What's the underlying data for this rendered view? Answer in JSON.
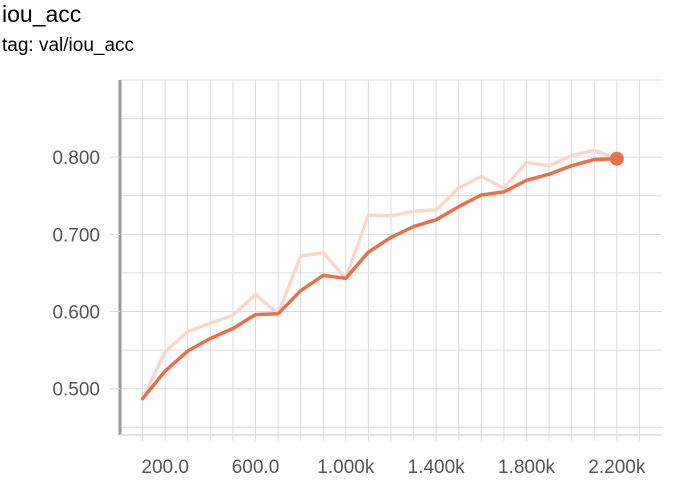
{
  "header": {
    "title": "iou_acc",
    "subtitle": "tag: val/iou_acc"
  },
  "chart_data": {
    "type": "line",
    "title": "iou_acc",
    "subtitle": "tag: val/iou_acc",
    "xlabel": "",
    "ylabel": "",
    "xlim": [
      0,
      2400
    ],
    "ylim": [
      0.44,
      0.9
    ],
    "grid": true,
    "x_ticks": [
      200,
      600,
      1000,
      1400,
      1800,
      2200
    ],
    "x_tick_labels": [
      "200.0",
      "600.0",
      "1.000k",
      "1.400k",
      "1.800k",
      "2.200k"
    ],
    "y_ticks": [
      0.5,
      0.6,
      0.7,
      0.8
    ],
    "y_tick_labels": [
      "0.500",
      "0.600",
      "0.700",
      "0.800"
    ],
    "colors": {
      "smoothed": "#e8704d",
      "raw": "#f8d7cd",
      "grid": "#dcdcdc",
      "axis": "#9a9a9a"
    },
    "series": [
      {
        "x": [
          100,
          200,
          300,
          400,
          500,
          600,
          700,
          800,
          900,
          1000,
          1100,
          1200,
          1300,
          1400,
          1500,
          1600,
          1700,
          1800,
          1900,
          2000,
          2100,
          2200
        ],
        "values": [
          0.487,
          0.548,
          0.574,
          0.585,
          0.595,
          0.622,
          0.597,
          0.672,
          0.676,
          0.643,
          0.725,
          0.724,
          0.73,
          0.732,
          0.76,
          0.775,
          0.76,
          0.793,
          0.789,
          0.802,
          0.809,
          0.798
        ]
      },
      {
        "x": [
          100,
          200,
          300,
          400,
          500,
          600,
          700,
          800,
          900,
          1000,
          1100,
          1200,
          1300,
          1400,
          1500,
          1600,
          1700,
          1800,
          1900,
          2000,
          2100,
          2200
        ],
        "values": [
          0.487,
          0.523,
          0.549,
          0.565,
          0.578,
          0.596,
          0.597,
          0.627,
          0.647,
          0.643,
          0.677,
          0.696,
          0.71,
          0.719,
          0.736,
          0.751,
          0.755,
          0.77,
          0.778,
          0.789,
          0.797,
          0.798
        ]
      }
    ]
  }
}
